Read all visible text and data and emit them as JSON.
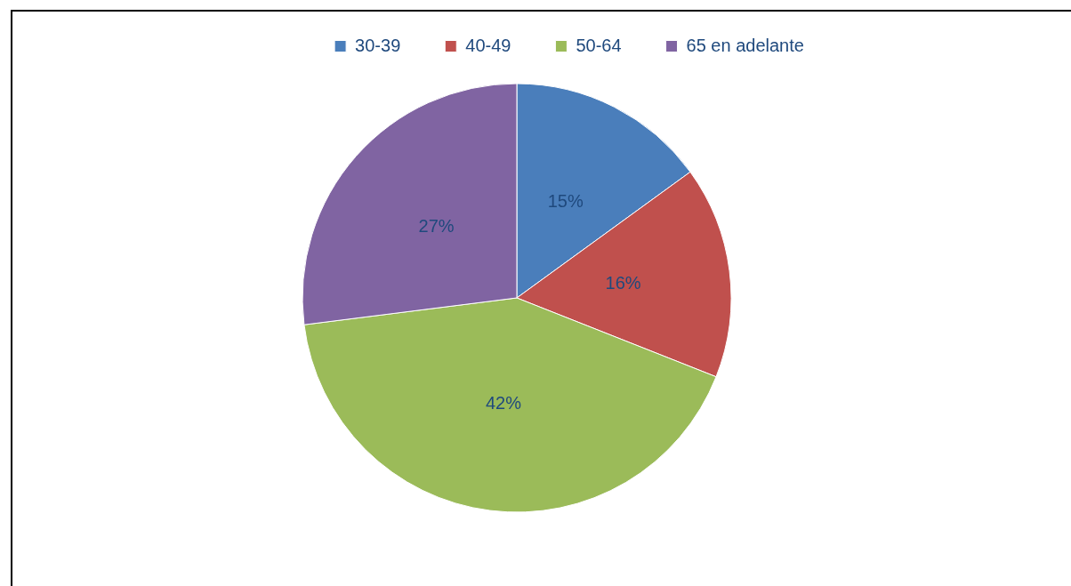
{
  "chart_data": {
    "type": "pie",
    "categories": [
      "30-39",
      "40-49",
      "50-64",
      "65 en adelante"
    ],
    "values": [
      15,
      16,
      42,
      27
    ],
    "value_labels": [
      "15%",
      "16%",
      "42%",
      "27%"
    ],
    "colors": [
      "#4a7ebb",
      "#c0504d",
      "#9bbb59",
      "#8064a2"
    ],
    "legend": "top"
  }
}
